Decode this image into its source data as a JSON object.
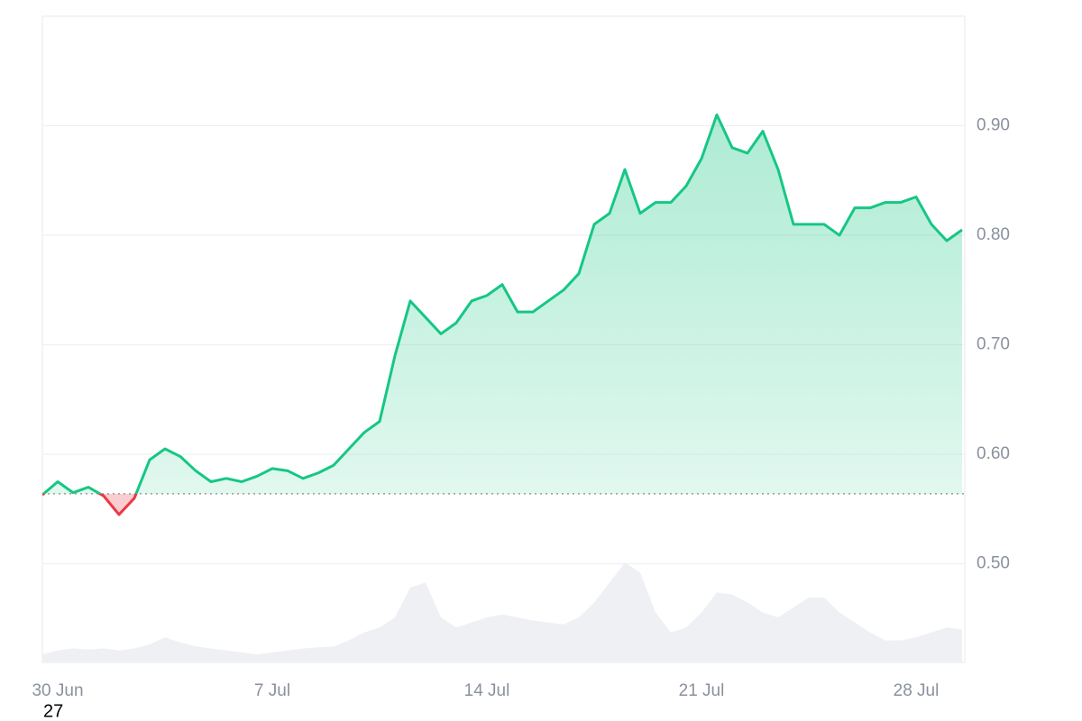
{
  "chart_data": {
    "type": "line",
    "categories": [
      null,
      "30 Jun",
      null,
      null,
      null,
      null,
      null,
      null,
      null,
      null,
      null,
      null,
      null,
      null,
      null,
      "7 Jul",
      null,
      null,
      null,
      null,
      null,
      null,
      null,
      null,
      null,
      null,
      null,
      null,
      null,
      "14 Jul",
      null,
      null,
      null,
      null,
      null,
      null,
      null,
      null,
      null,
      null,
      null,
      null,
      null,
      "21 Jul",
      null,
      null,
      null,
      null,
      null,
      null,
      null,
      null,
      null,
      null,
      null,
      null,
      null,
      "28 Jul",
      null,
      null,
      null
    ],
    "series": [
      {
        "name": "Price",
        "color": "#16c784",
        "down_color": "#ea3943",
        "values": [
          0.563,
          0.575,
          0.565,
          0.57,
          0.562,
          0.545,
          0.56,
          0.595,
          0.605,
          0.598,
          0.585,
          0.575,
          0.578,
          0.575,
          0.58,
          0.587,
          0.585,
          0.578,
          0.583,
          0.59,
          0.605,
          0.62,
          0.63,
          0.69,
          0.74,
          0.725,
          0.71,
          0.72,
          0.74,
          0.745,
          0.755,
          0.73,
          0.73,
          0.74,
          0.75,
          0.765,
          0.81,
          0.82,
          0.86,
          0.82,
          0.83,
          0.83,
          0.845,
          0.87,
          0.91,
          0.88,
          0.875,
          0.895,
          0.86,
          0.81,
          0.81,
          0.81,
          0.8,
          0.825,
          0.825,
          0.83,
          0.83,
          0.835,
          0.81,
          0.795,
          0.805
        ]
      },
      {
        "name": "Volume",
        "color": "#eef0f3",
        "values": [
          8,
          12,
          14,
          13,
          14,
          12,
          14,
          18,
          25,
          20,
          16,
          14,
          12,
          10,
          8,
          10,
          12,
          14,
          15,
          16,
          22,
          30,
          35,
          45,
          75,
          80,
          45,
          35,
          40,
          45,
          48,
          45,
          42,
          40,
          38,
          45,
          60,
          80,
          100,
          90,
          50,
          30,
          35,
          50,
          70,
          68,
          60,
          50,
          45,
          55,
          65,
          65,
          50,
          40,
          30,
          22,
          22,
          25,
          30,
          35,
          33
        ]
      }
    ],
    "baseline": 0.564,
    "ylim": [
      0.41,
      1.0
    ],
    "yticks": [
      {
        "value": 0.5,
        "label": "0.50"
      },
      {
        "value": 0.6,
        "label": "0.60"
      },
      {
        "value": 0.7,
        "label": "0.70"
      },
      {
        "value": 0.8,
        "label": "0.80"
      },
      {
        "value": 0.9,
        "label": "0.90"
      }
    ],
    "vlim": [
      0,
      110
    ],
    "grid": true,
    "annotation": "27"
  }
}
